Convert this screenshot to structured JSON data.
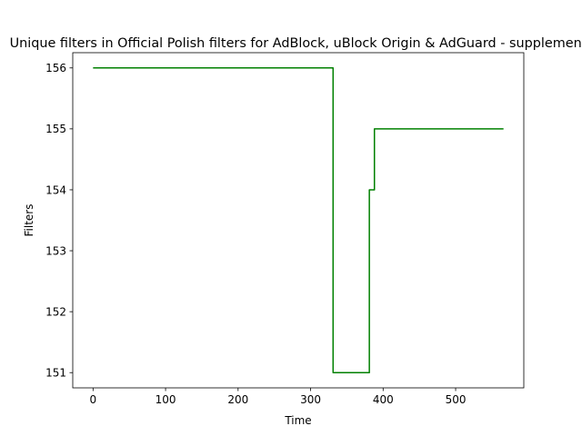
{
  "chart_data": {
    "type": "line",
    "title": "Unique filters in Official Polish filters for AdBlock, uBlock Origin & AdGuard - supplement",
    "xlabel": "Time",
    "ylabel": "Filters",
    "xlim": [
      -28,
      594
    ],
    "ylim": [
      150.75,
      156.25
    ],
    "xticks": [
      0,
      100,
      200,
      300,
      400,
      500
    ],
    "yticks": [
      151,
      152,
      153,
      154,
      155,
      156
    ],
    "grid": false,
    "series": [
      {
        "color": "#008000",
        "x": [
          0,
          331,
          331,
          381,
          381,
          388,
          388,
          566
        ],
        "y": [
          156,
          156,
          151,
          151,
          154,
          154,
          155,
          155
        ]
      }
    ]
  }
}
